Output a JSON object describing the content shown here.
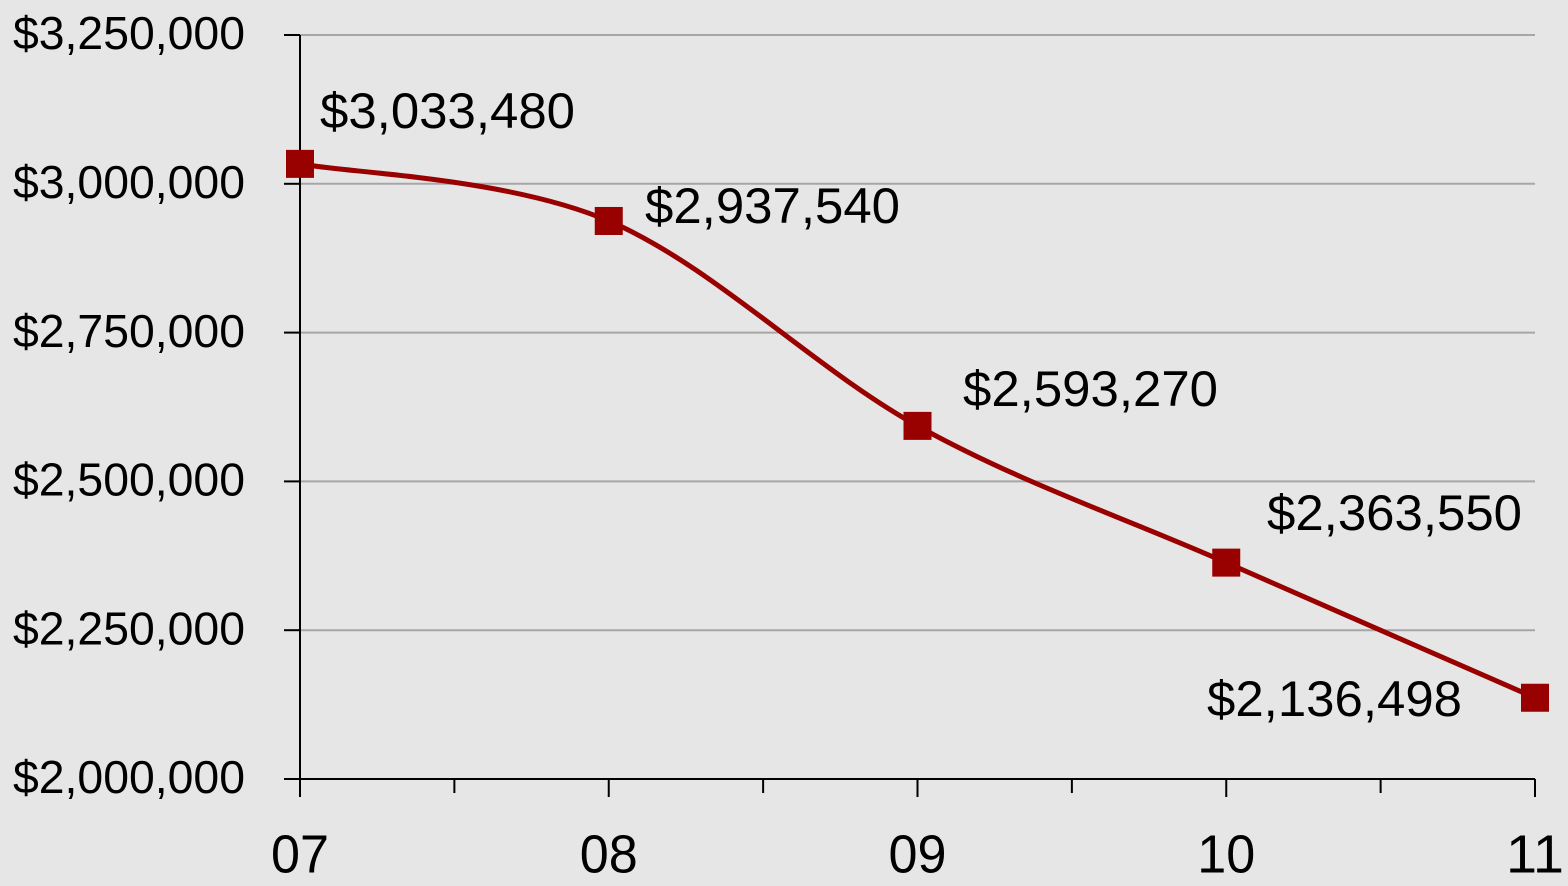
{
  "chart_data": {
    "type": "line",
    "categories": [
      "07",
      "08",
      "09",
      "10",
      "11"
    ],
    "series": [
      {
        "color": "#990000",
        "values": [
          3033480,
          2937540,
          2593270,
          2363550,
          2136498
        ],
        "value_labels": [
          "$3,033,480",
          "$2,937,540",
          "$2,593,270",
          "$2,363,550",
          "$2,136,498"
        ]
      }
    ],
    "ylim": [
      2000000,
      3250000
    ],
    "yticks": [
      {
        "value": 2000000,
        "label": "$2,000,000"
      },
      {
        "value": 2250000,
        "label": "$2,250,000"
      },
      {
        "value": 2500000,
        "label": "$2,500,000"
      },
      {
        "value": 2750000,
        "label": "$2,750,000"
      },
      {
        "value": 3000000,
        "label": "$3,000,000"
      },
      {
        "value": 3250000,
        "label": "$3,250,000"
      }
    ],
    "grid": true,
    "smooth": true
  }
}
